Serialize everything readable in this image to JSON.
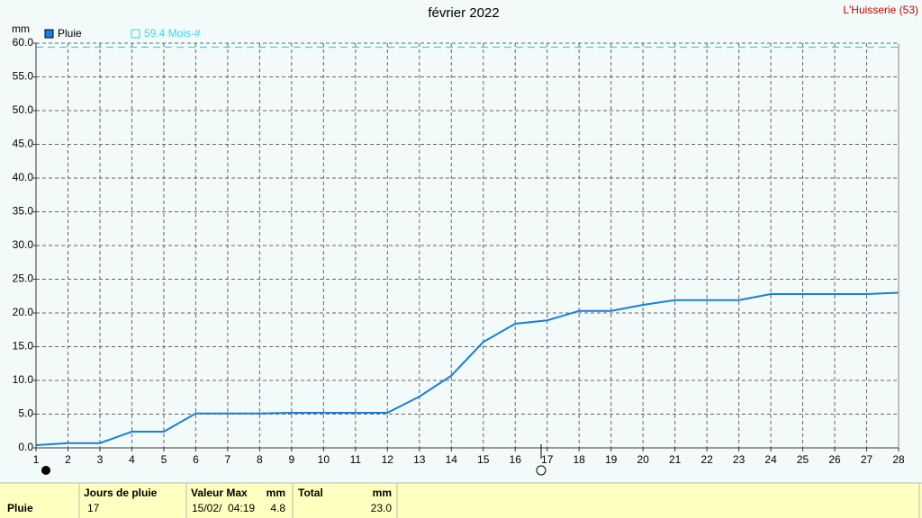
{
  "chart_data": {
    "type": "line",
    "title": "février 2022",
    "station": "L'Huisserie (53)",
    "y_label": "mm",
    "x": [
      1,
      2,
      3,
      4,
      5,
      6,
      7,
      8,
      9,
      10,
      11,
      12,
      13,
      14,
      15,
      16,
      17,
      18,
      19,
      20,
      21,
      22,
      23,
      24,
      25,
      26,
      27,
      28
    ],
    "xlim": [
      1,
      28
    ],
    "xticks": [
      1,
      2,
      3,
      4,
      5,
      6,
      7,
      8,
      9,
      10,
      11,
      12,
      13,
      14,
      15,
      16,
      17,
      18,
      19,
      20,
      21,
      22,
      23,
      24,
      25,
      26,
      27,
      28
    ],
    "ylim": [
      0,
      60
    ],
    "yticks": [
      {
        "value": 0,
        "label": "0.0"
      },
      {
        "value": 5,
        "label": "5.0"
      },
      {
        "value": 10,
        "label": "10.0"
      },
      {
        "value": 15,
        "label": "15.0"
      },
      {
        "value": 20,
        "label": "20.0"
      },
      {
        "value": 25,
        "label": "25.0"
      },
      {
        "value": 30,
        "label": "30.0"
      },
      {
        "value": 35,
        "label": "35.0"
      },
      {
        "value": 40,
        "label": "40.0"
      },
      {
        "value": 45,
        "label": "45.0"
      },
      {
        "value": 50,
        "label": "50.0"
      },
      {
        "value": 55,
        "label": "55.0"
      },
      {
        "value": 60,
        "label": "60.0"
      }
    ],
    "grid": true,
    "series": [
      {
        "name": "Pluie",
        "color": "#1a7fd8",
        "values": [
          0.4,
          0.7,
          0.7,
          2.4,
          2.4,
          5.1,
          5.1,
          5.1,
          5.2,
          5.2,
          5.2,
          5.2,
          7.6,
          10.7,
          15.7,
          18.4,
          18.9,
          20.3,
          20.3,
          21.2,
          21.9,
          21.9,
          21.9,
          22.8,
          22.8,
          22.8,
          22.8,
          23.0
        ]
      }
    ],
    "reference_line": {
      "value": 59.4,
      "label": "59.4 Mois-#",
      "color": "#3cd6e0"
    }
  },
  "table": {
    "header": [
      "Jours de pluie",
      "Valeur Max",
      "mm",
      "Total",
      "mm"
    ],
    "row_label": "Pluie",
    "row": [
      "17",
      "15/02/  04:19",
      "4.8",
      "23.0"
    ]
  }
}
